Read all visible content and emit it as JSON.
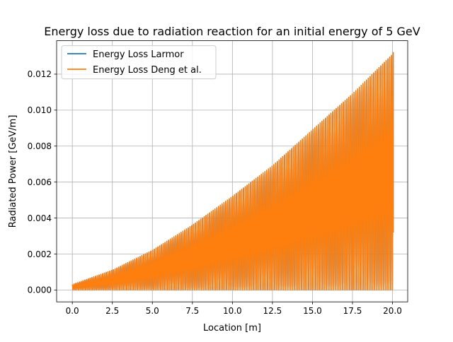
{
  "chart_data": {
    "type": "line",
    "title": "Energy loss due to radiation reaction for an initial energy of 5 GeV",
    "xlabel": "Location [m]",
    "ylabel": "Radiated Power [GeV/m]",
    "xlim": [
      -0.98,
      20.95
    ],
    "ylim": [
      -0.00066,
      0.01386
    ],
    "xticks": [
      0.0,
      2.5,
      5.0,
      7.5,
      10.0,
      12.5,
      15.0,
      17.5,
      20.0
    ],
    "xtick_labels": [
      "0.0",
      "2.5",
      "5.0",
      "7.5",
      "10.0",
      "12.5",
      "15.0",
      "17.5",
      "20.0"
    ],
    "yticks": [
      0.0,
      0.002,
      0.004,
      0.006,
      0.008,
      0.01,
      0.012
    ],
    "ytick_labels": [
      "0.000",
      "0.002",
      "0.004",
      "0.006",
      "0.008",
      "0.010",
      "0.012"
    ],
    "grid": true,
    "legend_position": "top-left",
    "oscillation": {
      "x_start": 0.0,
      "x_end": 20.05,
      "cycles": 180,
      "envelope": {
        "x": [
          0,
          2.5,
          5,
          7.5,
          10,
          12.5,
          15,
          17.5,
          20,
          20.05
        ],
        "y": [
          0.0003,
          0.0011,
          0.0022,
          0.0036,
          0.0052,
          0.0069,
          0.0089,
          0.0109,
          0.0131,
          0.0132
        ]
      },
      "end_value": 0.0032
    },
    "series": [
      {
        "name": "Energy Loss Larmor",
        "color": "#1f77b4"
      },
      {
        "name": "Energy Loss Deng et al.",
        "color": "#ff7f0e"
      }
    ]
  }
}
